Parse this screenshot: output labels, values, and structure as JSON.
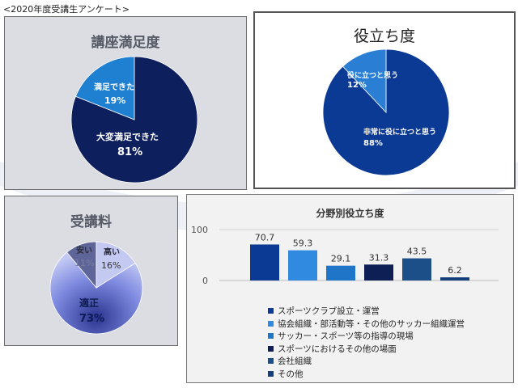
{
  "page_title": "<2020年度受講生アンケート>",
  "chart_data": [
    {
      "type": "pie",
      "title": "講座満足度",
      "slices": [
        {
          "label": "大変満足できた",
          "pct_label": "81%",
          "value": 81,
          "color": "#0d1f5c"
        },
        {
          "label": "満足できた",
          "pct_label": "19%",
          "value": 19,
          "color": "#1f7fd0"
        }
      ]
    },
    {
      "type": "pie",
      "title": "役立ち度",
      "slices": [
        {
          "label": "非常に役に立つと思う",
          "pct_label": "88%",
          "value": 88,
          "color": "#0b3a94"
        },
        {
          "label": "役に立つと思う",
          "pct_label": "12%",
          "value": 12,
          "color": "#2a7fd4"
        }
      ]
    },
    {
      "type": "pie",
      "title": "受講料",
      "slices": [
        {
          "label": "適正",
          "pct_label": "73%",
          "value": 73,
          "color": "#8b95e0"
        },
        {
          "label": "安い",
          "pct_label": "11%",
          "value": 11,
          "color": "#5e6699"
        },
        {
          "label": "高い",
          "pct_label": "16%",
          "value": 16,
          "color": "#c4c9f2"
        }
      ]
    },
    {
      "type": "bar",
      "title": "分野別役立ち度",
      "ylim": [
        0,
        100
      ],
      "yticks": [
        "0",
        "100"
      ],
      "values": [
        70.7,
        59.3,
        29.1,
        31.3,
        43.5,
        6.2
      ],
      "value_labels": [
        "70.7",
        "59.3",
        "29.1",
        "31.3",
        "43.5",
        "6.2"
      ],
      "series": [
        {
          "name": "スポーツクラブ設立・運営",
          "color": "#0b3a94"
        },
        {
          "name": "協会組織・部活動等・その他のサッカー組織運営",
          "color": "#2f8ae0"
        },
        {
          "name": "サッカー・スポーツ等の指導の現場",
          "color": "#1f76c8"
        },
        {
          "name": "スポーツにおけるその他の場面",
          "color": "#0e1f55"
        },
        {
          "name": "会社組織",
          "color": "#1c4f88"
        },
        {
          "name": "その他",
          "color": "#143f7a"
        }
      ],
      "legend_position": "bottom"
    }
  ]
}
